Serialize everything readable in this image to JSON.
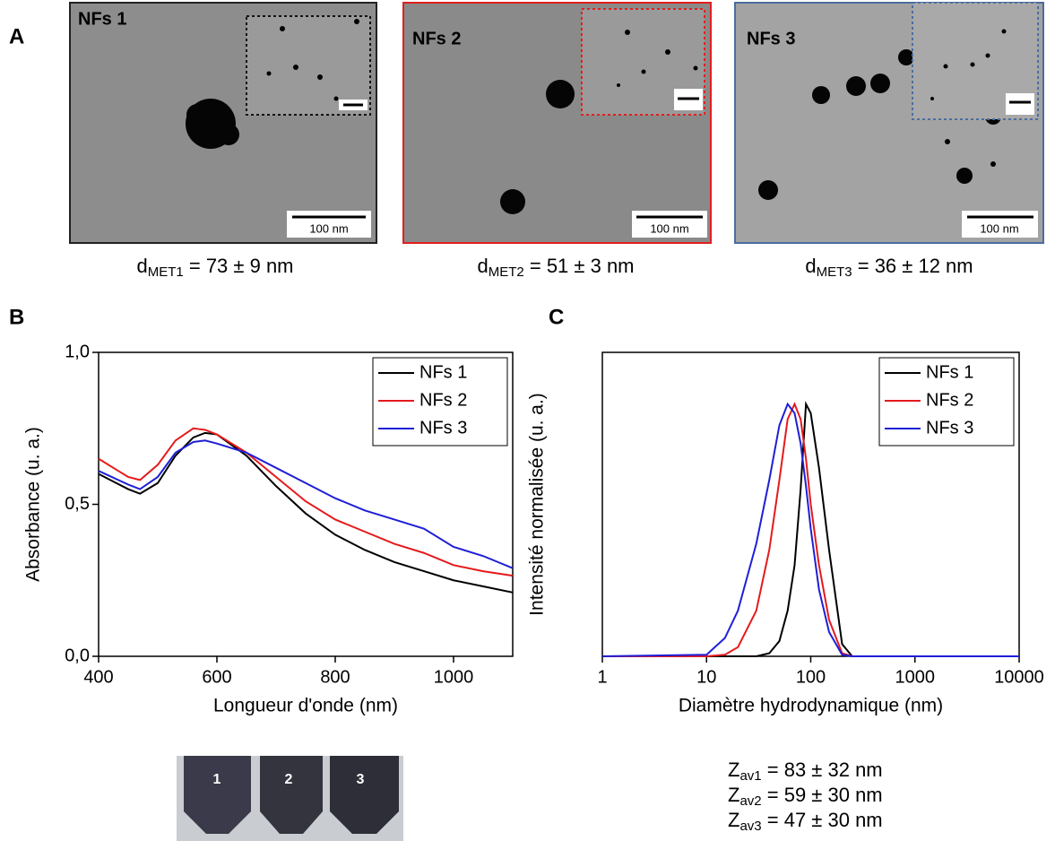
{
  "panel_a": {
    "label": "A",
    "images": [
      {
        "label": "NFs 1",
        "scale": "100 nm",
        "caption": {
          "main": "d",
          "sub": "MET1",
          "rest": " = 73 ± 9 nm"
        }
      },
      {
        "label": "NFs 2",
        "scale": "100 nm",
        "caption": {
          "main": "d",
          "sub": "MET2",
          "rest": " = 51 ± 3 nm"
        }
      },
      {
        "label": "NFs 3",
        "scale": "100 nm",
        "caption": {
          "main": "d",
          "sub": "MET3",
          "rest": " = 36 ± 12 nm"
        }
      }
    ]
  },
  "photo": {
    "labels": [
      "1",
      "2",
      "3"
    ]
  },
  "zav": [
    {
      "main": "Z",
      "sub": "av1",
      "rest": " = 83 ± 32 nm"
    },
    {
      "main": "Z",
      "sub": "av2",
      "rest": " = 59 ± 30 nm"
    },
    {
      "main": "Z",
      "sub": "av3",
      "rest": " = 47 ± 30 nm"
    }
  ],
  "chart_data": [
    {
      "type": "line",
      "panel": "B",
      "x_label": "Longueur d'onde (nm)",
      "y_label": "Absorbance (u. a.)",
      "x": [
        400,
        450,
        470,
        500,
        530,
        560,
        580,
        600,
        650,
        700,
        750,
        800,
        850,
        900,
        950,
        1000,
        1050,
        1100
      ],
      "series": [
        {
          "name": "NFs 1",
          "color": "#000000",
          "values": [
            0.6,
            0.55,
            0.535,
            0.57,
            0.66,
            0.72,
            0.735,
            0.73,
            0.66,
            0.56,
            0.47,
            0.4,
            0.35,
            0.31,
            0.28,
            0.25,
            0.23,
            0.21
          ]
        },
        {
          "name": "NFs 2",
          "color": "#e41a1c",
          "values": [
            0.65,
            0.59,
            0.58,
            0.63,
            0.71,
            0.75,
            0.745,
            0.73,
            0.67,
            0.59,
            0.51,
            0.45,
            0.41,
            0.37,
            0.34,
            0.3,
            0.28,
            0.265
          ]
        },
        {
          "name": "NFs 3",
          "color": "#1f1fd6",
          "values": [
            0.61,
            0.565,
            0.55,
            0.59,
            0.67,
            0.705,
            0.71,
            0.7,
            0.67,
            0.62,
            0.57,
            0.52,
            0.48,
            0.45,
            0.42,
            0.36,
            0.33,
            0.29
          ]
        }
      ],
      "xlim": [
        400,
        1100
      ],
      "ylim": [
        0,
        1
      ],
      "xticks": [
        400,
        600,
        800,
        1000
      ],
      "yticks": [
        {
          "value": 0,
          "label": "0,0"
        },
        {
          "value": 0.5,
          "label": "0,5"
        },
        {
          "value": 1,
          "label": "1,0"
        }
      ],
      "legend": "upper right"
    },
    {
      "type": "line",
      "panel": "C",
      "x_label": "Diamètre hydrodynamique (nm)",
      "y_label": "Intensité normalisée (u. a.)",
      "xscale": "log",
      "x": [
        1,
        10,
        15,
        20,
        30,
        40,
        50,
        60,
        70,
        80,
        90,
        100,
        120,
        150,
        200,
        250,
        10000
      ],
      "series": [
        {
          "name": "NFs 1",
          "color": "#000000",
          "values": [
            0,
            0,
            0,
            0,
            0,
            0.01,
            0.05,
            0.15,
            0.3,
            0.55,
            0.83,
            0.8,
            0.62,
            0.35,
            0.04,
            0,
            0
          ]
        },
        {
          "name": "NFs 2",
          "color": "#e41a1c",
          "values": [
            0,
            0,
            0.005,
            0.03,
            0.15,
            0.35,
            0.58,
            0.78,
            0.83,
            0.78,
            0.65,
            0.5,
            0.3,
            0.12,
            0.01,
            0,
            0
          ]
        },
        {
          "name": "NFs 3",
          "color": "#1f1fd6",
          "values": [
            0,
            0.005,
            0.06,
            0.15,
            0.37,
            0.58,
            0.76,
            0.83,
            0.8,
            0.7,
            0.56,
            0.42,
            0.22,
            0.08,
            0.005,
            0,
            0
          ]
        }
      ],
      "xlim": [
        1,
        10000
      ],
      "ylim": [
        0,
        1
      ],
      "xticks": [
        1,
        10,
        100,
        1000,
        10000
      ],
      "legend": "upper right"
    }
  ]
}
